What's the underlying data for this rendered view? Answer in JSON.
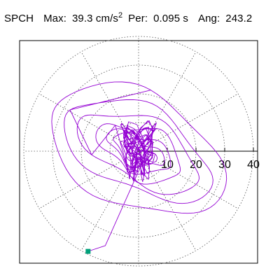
{
  "header": {
    "station": "SPCH",
    "max_label": "Max:",
    "max_value": "39.3",
    "max_unit": "cm/s",
    "max_unit_exp": "2",
    "per_label": "Per:",
    "per_value": "0.095 s",
    "ang_label": "Ang:",
    "ang_value": "243.2"
  },
  "chart_data": {
    "type": "polar-particle-motion",
    "title": "SPCH  Max: 39.3 cm/s2  Per: 0.095 s  Ang: 243.2",
    "radial_ticks": [
      10,
      20,
      30,
      40
    ],
    "radial_tick_labels": [
      "10",
      "20",
      "30",
      "40"
    ],
    "rlim": [
      0,
      40
    ],
    "angular_grid_deg": [
      0,
      30,
      60,
      90,
      120,
      150,
      180,
      210,
      240,
      270,
      300,
      330
    ],
    "grid": true,
    "max_amplitude": 39.3,
    "max_angle_deg": 243.2,
    "marker": {
      "label": "end-point",
      "color": "#00a07a"
    },
    "colors": {
      "trace": "#9400d3",
      "grid": "#555555",
      "axis": "#000000"
    },
    "loops": [
      {
        "ax": 20.0,
        "ay": 31.0,
        "phase": 0.2,
        "w": 0.12
      },
      {
        "ax": 14.5,
        "ay": 26.0,
        "phase": 1.4,
        "w": 0.18
      },
      {
        "ax": 11.0,
        "ay": 21.0,
        "phase": 2.4,
        "w": 0.22
      },
      {
        "ax": 8.5,
        "ay": 14.0,
        "phase": 0.9,
        "w": 0.3
      },
      {
        "ax": 6.0,
        "ay": 10.5,
        "phase": 3.1,
        "w": 0.35
      },
      {
        "ax": 4.5,
        "ay": 8.0,
        "phase": 4.0,
        "w": 0.45
      },
      {
        "ax": 3.0,
        "ay": 5.5,
        "phase": 5.2,
        "w": 0.55
      },
      {
        "ax": 2.2,
        "ay": 4.0,
        "phase": 1.8,
        "w": 0.6
      }
    ],
    "end_point": {
      "x": -17.6,
      "y": -34.9
    }
  }
}
